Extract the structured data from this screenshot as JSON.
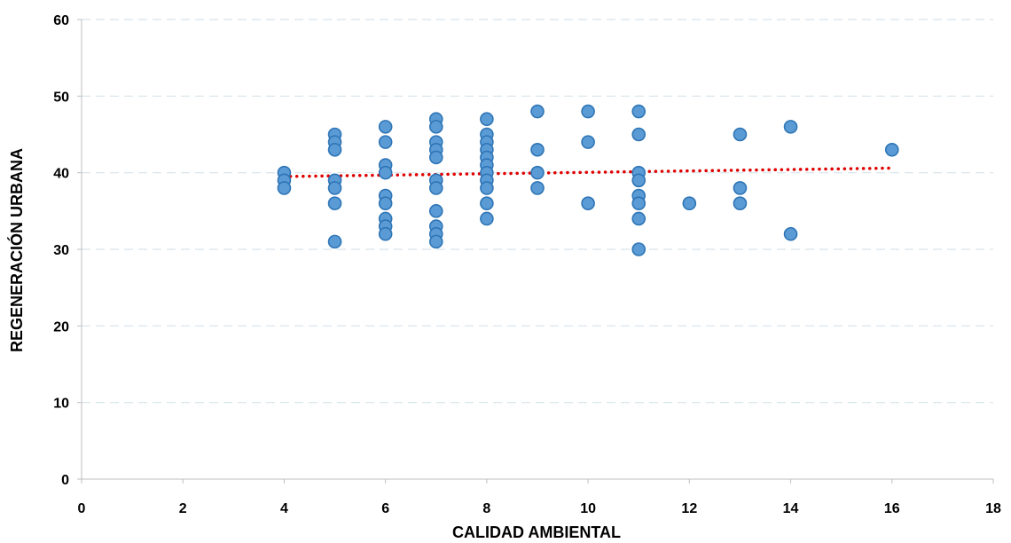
{
  "chart_data": {
    "type": "scatter",
    "xlabel": "CALIDAD AMBIENTAL",
    "ylabel": "REGENERACIÓN URBANA",
    "xlim": [
      0,
      18
    ],
    "ylim": [
      0,
      60
    ],
    "x_ticks": [
      "0",
      "2",
      "4",
      "6",
      "8",
      "10",
      "12",
      "14",
      "16",
      "18"
    ],
    "y_ticks": [
      "0",
      "10",
      "20",
      "30",
      "40",
      "50",
      "60"
    ],
    "grid": "horizontal-dashed",
    "marker_color": "#5b9bd5",
    "marker_edge_color": "#2e75b6",
    "trendline_color": "#e00000",
    "points": [
      [
        4,
        40
      ],
      [
        4,
        39
      ],
      [
        4,
        38
      ],
      [
        5,
        45
      ],
      [
        5,
        44
      ],
      [
        5,
        43
      ],
      [
        5,
        39
      ],
      [
        5,
        38
      ],
      [
        5,
        36
      ],
      [
        5,
        31
      ],
      [
        6,
        46
      ],
      [
        6,
        44
      ],
      [
        6,
        41
      ],
      [
        6,
        40
      ],
      [
        6,
        37
      ],
      [
        6,
        36
      ],
      [
        6,
        34
      ],
      [
        6,
        33
      ],
      [
        6,
        32
      ],
      [
        7,
        47
      ],
      [
        7,
        46
      ],
      [
        7,
        44
      ],
      [
        7,
        43
      ],
      [
        7,
        42
      ],
      [
        7,
        39
      ],
      [
        7,
        38
      ],
      [
        7,
        35
      ],
      [
        7,
        33
      ],
      [
        7,
        32
      ],
      [
        7,
        31
      ],
      [
        8,
        47
      ],
      [
        8,
        45
      ],
      [
        8,
        44
      ],
      [
        8,
        43
      ],
      [
        8,
        42
      ],
      [
        8,
        41
      ],
      [
        8,
        40
      ],
      [
        8,
        39
      ],
      [
        8,
        38
      ],
      [
        8,
        36
      ],
      [
        8,
        34
      ],
      [
        9,
        48
      ],
      [
        9,
        43
      ],
      [
        9,
        40
      ],
      [
        9,
        38
      ],
      [
        10,
        48
      ],
      [
        10,
        44
      ],
      [
        10,
        36
      ],
      [
        11,
        48
      ],
      [
        11,
        45
      ],
      [
        11,
        40
      ],
      [
        11,
        39
      ],
      [
        11,
        37
      ],
      [
        11,
        36
      ],
      [
        11,
        34
      ],
      [
        11,
        30
      ],
      [
        12,
        36
      ],
      [
        13,
        45
      ],
      [
        13,
        38
      ],
      [
        13,
        36
      ],
      [
        14,
        46
      ],
      [
        14,
        32
      ],
      [
        16,
        43
      ]
    ],
    "trendline": {
      "type": "linear",
      "x": [
        4,
        16
      ],
      "y": [
        39.5,
        40.6
      ]
    }
  }
}
